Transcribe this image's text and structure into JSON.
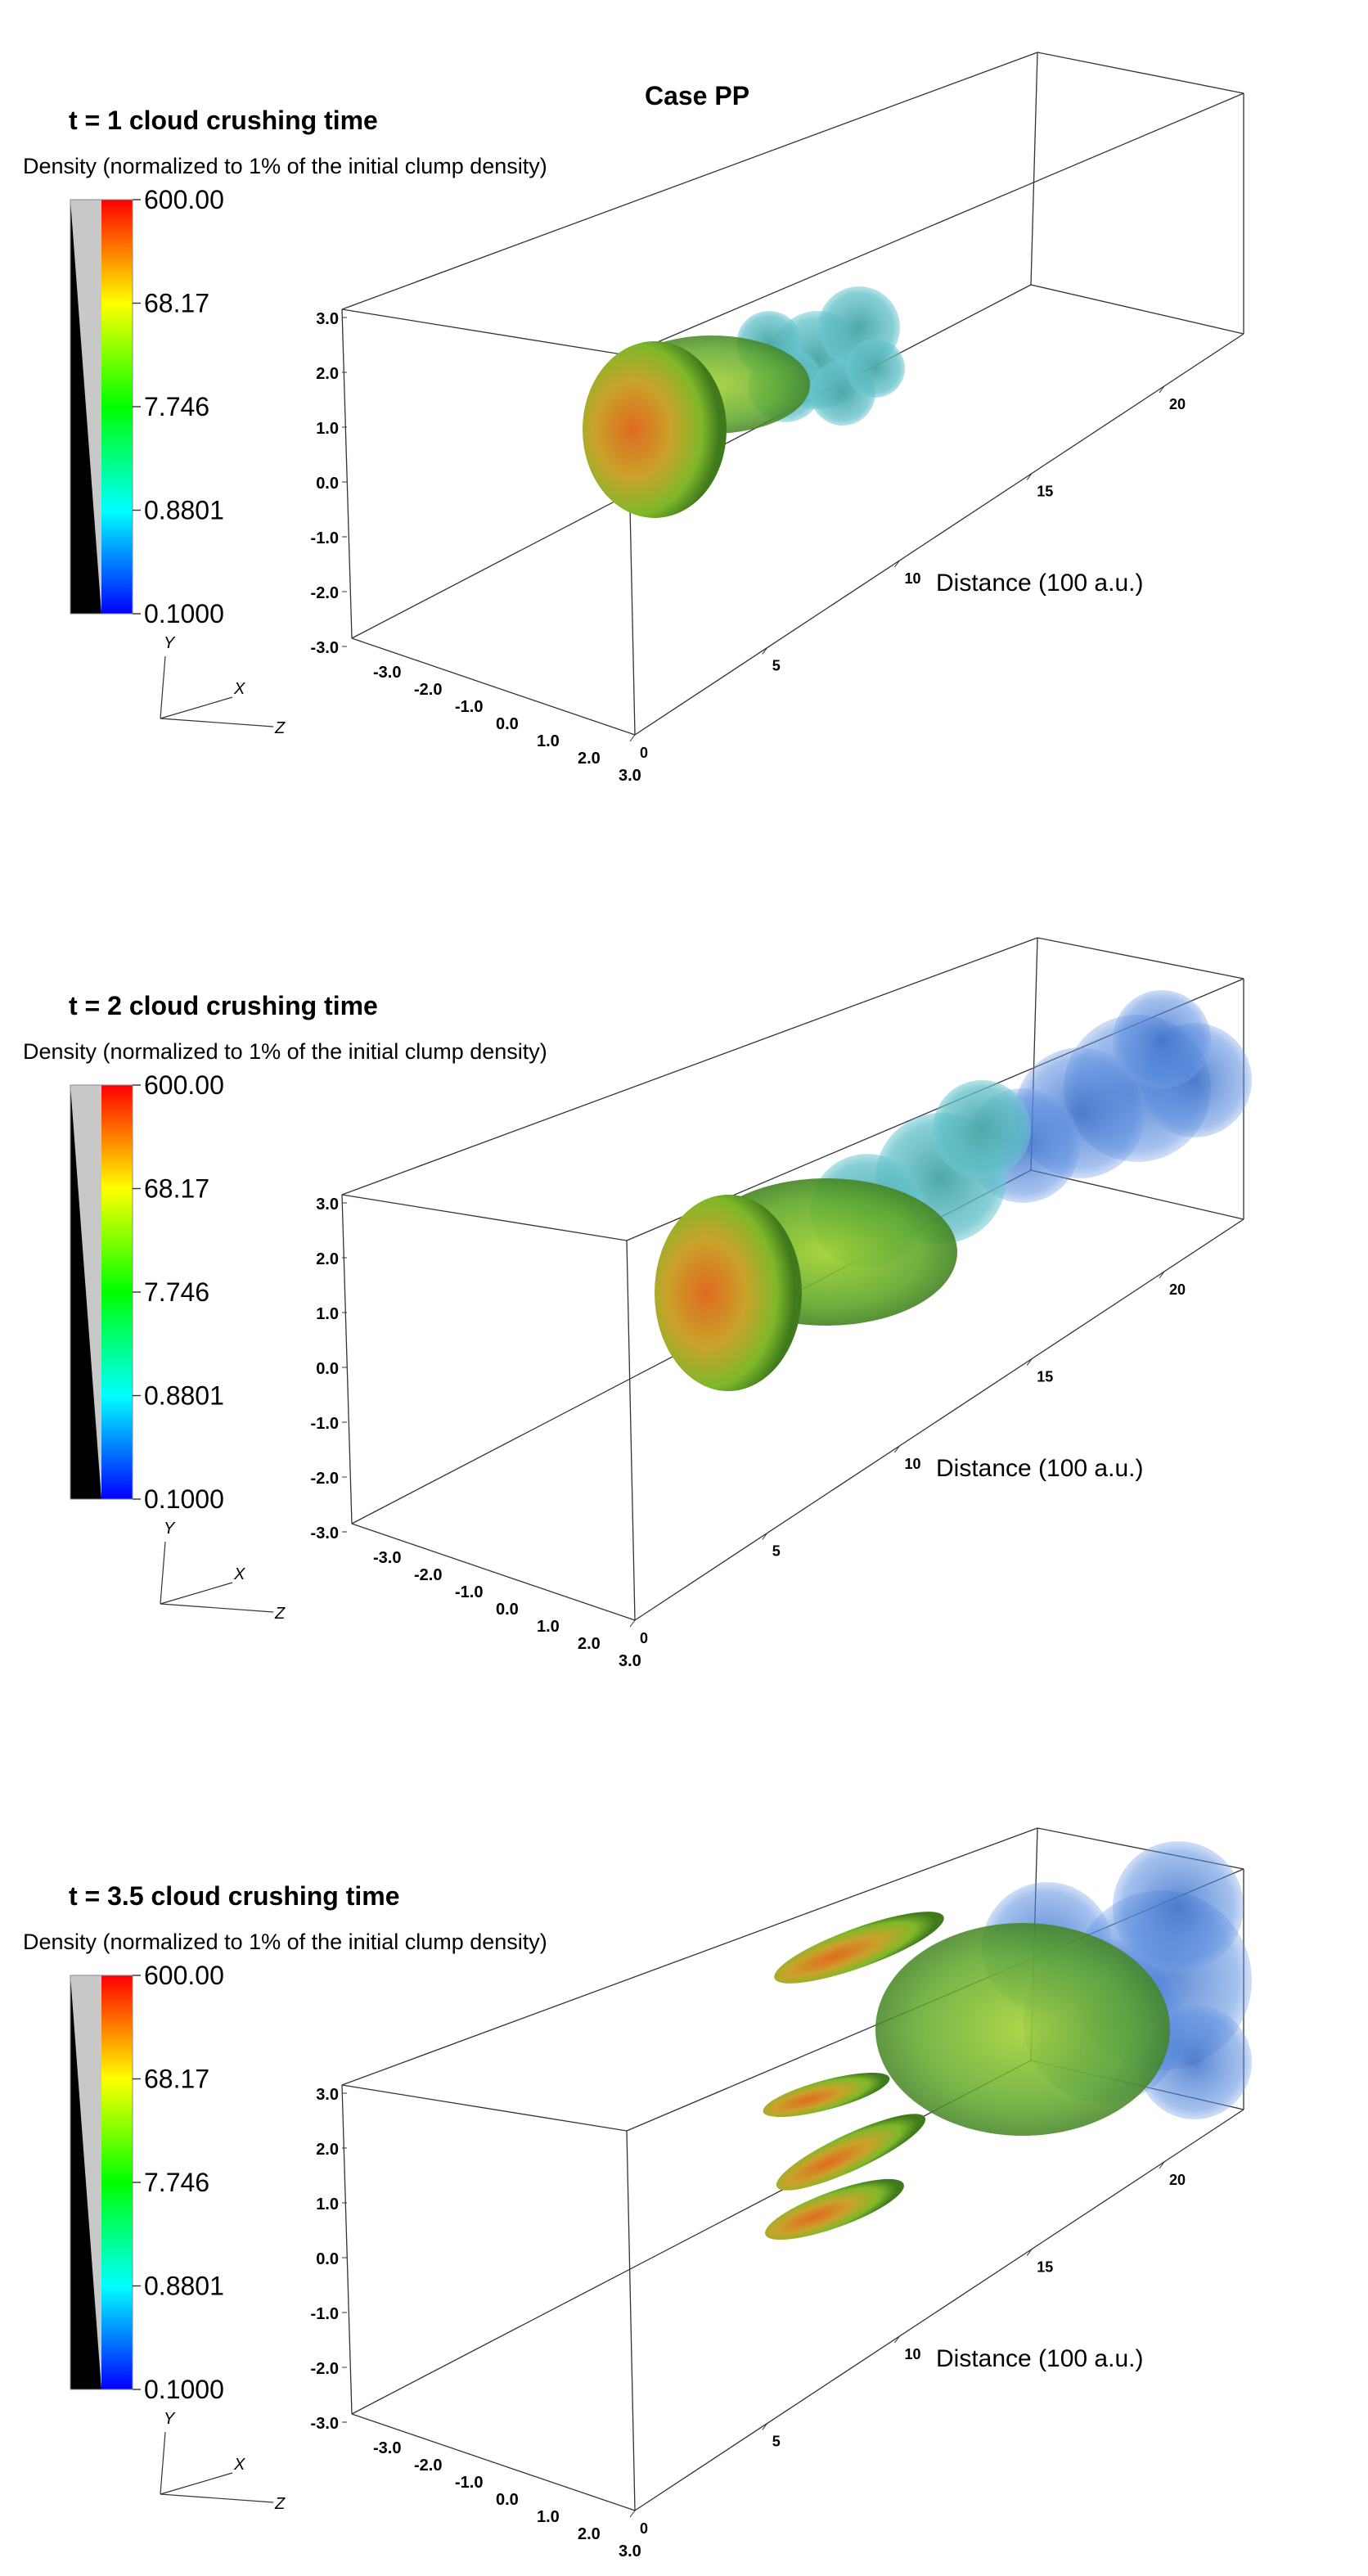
{
  "case_title": "Case PP",
  "colorbar_title": "Density (normalized to 1% of the initial clump density)",
  "colorbar_ticks": [
    "600.00",
    "68.17",
    "7.746",
    "0.8801",
    "0.1000"
  ],
  "colormap": [
    "#ff0000",
    "#ffff00",
    "#00ff00",
    "#00ffff",
    "#0000ff"
  ],
  "axis_triad": {
    "y": "Y",
    "x": "X",
    "z": "Z"
  },
  "y_ticks": [
    "3.0",
    "2.0",
    "1.0",
    "0.0",
    "-1.0",
    "-2.0",
    "-3.0"
  ],
  "x_ticks": [
    "-3.0",
    "-2.0",
    "-1.0",
    "0.0",
    "1.0",
    "2.0",
    "3.0"
  ],
  "z_ticks": [
    "0",
    "5",
    "10",
    "15",
    "20"
  ],
  "distance_label": "Distance (100 a.u.)",
  "panels": [
    {
      "title": "t = 1 cloud crushing time",
      "stage": 1
    },
    {
      "title": "t = 2 cloud crushing time",
      "stage": 2
    },
    {
      "title": "t = 3.5 cloud crushing time",
      "stage": 3
    }
  ]
}
